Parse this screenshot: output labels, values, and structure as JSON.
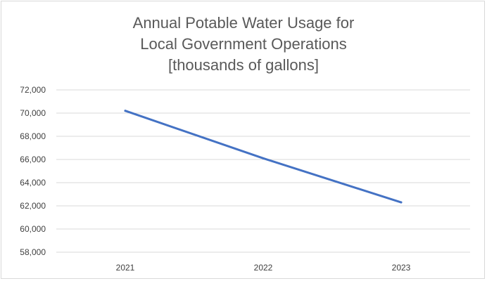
{
  "chart_data": {
    "type": "line",
    "title_lines": [
      "Annual Potable Water Usage for",
      "Local Government Operations",
      "[thousands of gallons]"
    ],
    "categories": [
      "2021",
      "2022",
      "2023"
    ],
    "series": [
      {
        "values": [
          70200,
          66100,
          62300
        ],
        "color": "#4472c4"
      }
    ],
    "y_ticks": [
      58000,
      60000,
      62000,
      64000,
      66000,
      68000,
      70000,
      72000
    ],
    "y_tick_labels": [
      "58,000",
      "60,000",
      "62,000",
      "64,000",
      "66,000",
      "68,000",
      "70,000",
      "72,000"
    ],
    "ylim": [
      58000,
      72000
    ],
    "grid": true,
    "legend": "none",
    "gridline_color": "#d9d9d9"
  }
}
